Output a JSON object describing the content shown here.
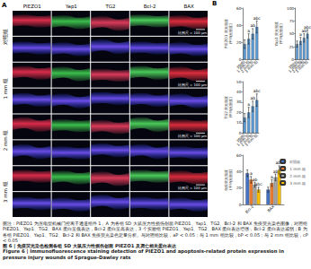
{
  "panel_a": {
    "label": "A",
    "columns": [
      "PIEZO1",
      "Yap1",
      "TG2",
      "Bcl-2",
      "BAX"
    ],
    "rows": [
      "对照组",
      "1 mm 组",
      "2 mm 组",
      "3 mm 组"
    ],
    "scale_bar": "比例尺 = 100 μm"
  },
  "panel_b": {
    "label": "B"
  },
  "chart_data": [
    {
      "type": "bar",
      "ylabel": "PIEZO1 荧光强度\n(平均光密度)",
      "categories": [
        "对照组",
        "1 mm 组",
        "2 mm 组",
        "3 mm 组"
      ],
      "values": [
        18,
        24,
        30,
        38
      ],
      "errors": [
        5,
        6,
        6,
        7
      ],
      "annotations": [
        null,
        "a",
        "ab",
        "abc"
      ],
      "color": "#5b9bd5",
      "ylim": [
        0,
        60
      ],
      "yticks": [
        0,
        20,
        40,
        60
      ]
    },
    {
      "type": "bar",
      "ylabel": "Yap1 荧光强度\n(平均光密度)",
      "categories": [
        "对照组",
        "1 mm 组",
        "2 mm 组",
        "3 mm 组"
      ],
      "values": [
        30,
        36,
        42,
        50
      ],
      "errors": [
        6,
        7,
        8,
        8
      ],
      "annotations": [
        null,
        "a",
        "ab",
        "abc"
      ],
      "color": "#5b9bd5",
      "ylim": [
        0,
        100
      ],
      "yticks": [
        0,
        25,
        50,
        75,
        100
      ]
    },
    {
      "type": "bar",
      "ylabel": "TG2 荧光强度\n(平均光密度)",
      "categories": [
        "对照组",
        "1 mm 组",
        "2 mm 组",
        "3 mm 组"
      ],
      "values": [
        15,
        20,
        26,
        32
      ],
      "errors": [
        4,
        5,
        5,
        6
      ],
      "annotations": [
        null,
        "a",
        "ab",
        "abc"
      ],
      "color": "#5b9bd5",
      "ylim": [
        0,
        50
      ],
      "yticks": [
        0,
        10,
        20,
        30,
        40,
        50
      ]
    },
    {
      "type": "bar",
      "ylabel": "免疫荧光强度\n(平均光密度)",
      "categories": [
        "Bcl-2",
        "BAX"
      ],
      "legend": "right",
      "series": [
        {
          "name": "对照组",
          "color": "#4472c4",
          "values": [
            38,
            18
          ],
          "errors": [
            4,
            3
          ],
          "annotations": [
            null,
            null
          ]
        },
        {
          "name": "1 mm 组",
          "color": "#ed7d31",
          "values": [
            30,
            26
          ],
          "errors": [
            4,
            4
          ],
          "annotations": [
            "a",
            "a"
          ]
        },
        {
          "name": "2 mm 组",
          "color": "#a5a5a5",
          "values": [
            24,
            33
          ],
          "errors": [
            3,
            4
          ],
          "annotations": [
            "ab",
            "ab"
          ]
        },
        {
          "name": "3 mm 组",
          "color": "#ffc000",
          "values": [
            18,
            42
          ],
          "errors": [
            3,
            5
          ],
          "annotations": [
            "abc",
            "abc"
          ]
        }
      ],
      "ylim": [
        0,
        60
      ],
      "yticks": [
        0,
        20,
        40,
        60
      ]
    }
  ],
  "caption": {
    "note": "图注：PIEZO1 为压电型机械门控离子通道组件 1。A 为各组 SD 大鼠压力性损伤创面 PIEZO1、Yap1、TG2、Bcl-2 和 BAX 免疫荧光染色图像，对照组 PIEZO1、Yap1、TG2、BAX 蛋白呈低表达，Bcl-2 蛋白呈高表达，3 个实验组 PIEZO1、Yap1、TG2、BAX 蛋白表达增强，Bcl-2 蛋白表达减弱；B 为各组 PIEZO1、Yap1、TG2、Bcl-2 和 BAX 免疫荧光染色定量分析。与对照组比较，aP < 0.05；与 1 mm 组比较，bP < 0.05；与 2 mm 组比较，cP < 0.05",
    "title_cn": "图 6 | 免疫荧光染色检测各组 SD 大鼠压力性损伤创面 PIEZO1 及凋亡相关蛋白表达",
    "title_en": "Figure 6 | Immunofluorescence staining detection of PIEZO1 and apoptosis-related protein expression in pressure injury wounds of Sprague-Dawley rats"
  }
}
